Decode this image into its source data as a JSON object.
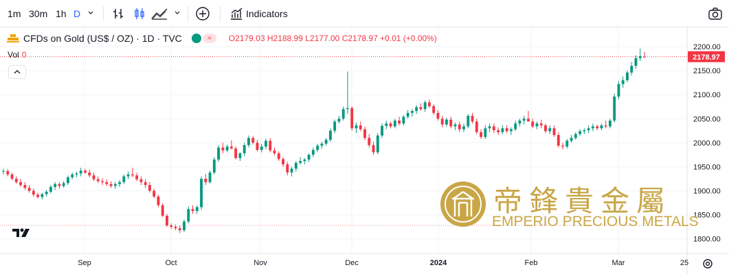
{
  "toolbar": {
    "intervals": [
      "1m",
      "30m",
      "1h",
      "D"
    ],
    "active_interval": "D",
    "indicators_label": "Indicators",
    "accent_color": "#2962ff"
  },
  "legend": {
    "symbol": "CFDs on Gold (US$ / OZ) · 1D · TVC",
    "open_label": "O",
    "open": "2179.03",
    "high_label": "H",
    "high": "2188.99",
    "low_label": "L",
    "low": "2177.00",
    "close_label": "C",
    "close": "2178.97",
    "change": "+0.01 (+0.00%)"
  },
  "volume": {
    "label": "Vol",
    "value": "0"
  },
  "price_tag": "2178.97",
  "watermark": {
    "chinese": "帝鋒貴金屬",
    "english": "EMPERIO PRECIOUS METALS"
  },
  "colors": {
    "up": "#089981",
    "down": "#f23645",
    "gold": "#c9a646"
  },
  "chart_data": {
    "type": "candlestick",
    "y_ticks": [
      "2200.00",
      "2150.00",
      "2100.00",
      "2050.00",
      "2000.00",
      "1950.00",
      "1900.00",
      "1850.00",
      "1800.00"
    ],
    "ylim": [
      1790,
      2215
    ],
    "x_ticks": [
      "Sep",
      "Oct",
      "Nov",
      "Dec",
      "2024",
      "Feb",
      "Mar",
      "25"
    ],
    "last_price": 2178.97,
    "candles": [
      [
        1940,
        1946,
        1934,
        1941
      ],
      [
        1941,
        1945,
        1930,
        1934
      ],
      [
        1934,
        1938,
        1922,
        1925
      ],
      [
        1925,
        1930,
        1915,
        1918
      ],
      [
        1918,
        1925,
        1908,
        1912
      ],
      [
        1912,
        1918,
        1902,
        1906
      ],
      [
        1906,
        1912,
        1896,
        1900
      ],
      [
        1900,
        1905,
        1888,
        1892
      ],
      [
        1892,
        1896,
        1884,
        1887
      ],
      [
        1887,
        1895,
        1882,
        1893
      ],
      [
        1893,
        1902,
        1888,
        1898
      ],
      [
        1898,
        1912,
        1894,
        1908
      ],
      [
        1908,
        1918,
        1902,
        1914
      ],
      [
        1914,
        1918,
        1904,
        1910
      ],
      [
        1910,
        1920,
        1906,
        1916
      ],
      [
        1916,
        1932,
        1912,
        1928
      ],
      [
        1928,
        1938,
        1924,
        1934
      ],
      [
        1934,
        1940,
        1928,
        1936
      ],
      [
        1936,
        1948,
        1930,
        1942
      ],
      [
        1942,
        1946,
        1935,
        1938
      ],
      [
        1938,
        1944,
        1928,
        1932
      ],
      [
        1932,
        1938,
        1920,
        1924
      ],
      [
        1924,
        1930,
        1916,
        1920
      ],
      [
        1920,
        1926,
        1912,
        1918
      ],
      [
        1918,
        1924,
        1910,
        1914
      ],
      [
        1914,
        1920,
        1906,
        1910
      ],
      [
        1910,
        1918,
        1904,
        1914
      ],
      [
        1914,
        1922,
        1908,
        1918
      ],
      [
        1918,
        1934,
        1914,
        1930
      ],
      [
        1930,
        1940,
        1924,
        1934
      ],
      [
        1934,
        1948,
        1928,
        1932
      ],
      [
        1932,
        1938,
        1920,
        1924
      ],
      [
        1924,
        1930,
        1912,
        1918
      ],
      [
        1918,
        1924,
        1906,
        1912
      ],
      [
        1912,
        1918,
        1896,
        1900
      ],
      [
        1900,
        1904,
        1884,
        1888
      ],
      [
        1888,
        1892,
        1866,
        1870
      ],
      [
        1870,
        1874,
        1845,
        1848
      ],
      [
        1848,
        1852,
        1825,
        1828
      ],
      [
        1828,
        1832,
        1820,
        1825
      ],
      [
        1825,
        1830,
        1818,
        1822
      ],
      [
        1822,
        1828,
        1812,
        1818
      ],
      [
        1818,
        1840,
        1814,
        1836
      ],
      [
        1836,
        1868,
        1832,
        1862
      ],
      [
        1862,
        1870,
        1852,
        1858
      ],
      [
        1858,
        1870,
        1852,
        1866
      ],
      [
        1866,
        1930,
        1860,
        1925
      ],
      [
        1925,
        1935,
        1912,
        1918
      ],
      [
        1918,
        1942,
        1915,
        1938
      ],
      [
        1938,
        1970,
        1934,
        1965
      ],
      [
        1965,
        1995,
        1960,
        1990
      ],
      [
        1990,
        2000,
        1978,
        1984
      ],
      [
        1984,
        1996,
        1980,
        1992
      ],
      [
        1992,
        2005,
        1986,
        1988
      ],
      [
        1988,
        1992,
        1965,
        1968
      ],
      [
        1968,
        1980,
        1962,
        1978
      ],
      [
        1978,
        2000,
        1972,
        1995
      ],
      [
        1995,
        2015,
        1990,
        2010
      ],
      [
        2010,
        2014,
        1996,
        2000
      ],
      [
        2000,
        2006,
        1982,
        1985
      ],
      [
        1985,
        1998,
        1980,
        1992
      ],
      [
        1992,
        2008,
        1986,
        2004
      ],
      [
        2004,
        2010,
        1980,
        1984
      ],
      [
        1984,
        1990,
        1974,
        1978
      ],
      [
        1978,
        1982,
        1962,
        1966
      ],
      [
        1966,
        1970,
        1950,
        1955
      ],
      [
        1955,
        1960,
        1932,
        1938
      ],
      [
        1938,
        1950,
        1930,
        1946
      ],
      [
        1946,
        1962,
        1940,
        1958
      ],
      [
        1958,
        1970,
        1954,
        1962
      ],
      [
        1962,
        1968,
        1955,
        1965
      ],
      [
        1965,
        1978,
        1960,
        1975
      ],
      [
        1975,
        1990,
        1970,
        1985
      ],
      [
        1985,
        1998,
        1980,
        1994
      ],
      [
        1994,
        2002,
        1988,
        1998
      ],
      [
        1998,
        2010,
        1994,
        2006
      ],
      [
        2006,
        2030,
        2002,
        2025
      ],
      [
        2025,
        2048,
        2020,
        2044
      ],
      [
        2044,
        2056,
        2040,
        2050
      ],
      [
        2050,
        2075,
        2046,
        2070
      ],
      [
        2070,
        2148,
        2060,
        2072
      ],
      [
        2072,
        2076,
        2025,
        2030
      ],
      [
        2030,
        2042,
        2020,
        2036
      ],
      [
        2036,
        2044,
        2024,
        2028
      ],
      [
        2028,
        2034,
        2005,
        2010
      ],
      [
        2010,
        2018,
        1990,
        1995
      ],
      [
        1995,
        2002,
        1975,
        1980
      ],
      [
        1980,
        2020,
        1976,
        2015
      ],
      [
        2015,
        2040,
        2010,
        2035
      ],
      [
        2035,
        2046,
        2028,
        2040
      ],
      [
        2040,
        2044,
        2030,
        2034
      ],
      [
        2034,
        2050,
        2030,
        2046
      ],
      [
        2046,
        2054,
        2036,
        2040
      ],
      [
        2040,
        2058,
        2036,
        2054
      ],
      [
        2054,
        2068,
        2050,
        2062
      ],
      [
        2062,
        2070,
        2054,
        2066
      ],
      [
        2066,
        2078,
        2060,
        2074
      ],
      [
        2074,
        2082,
        2066,
        2070
      ],
      [
        2070,
        2088,
        2064,
        2084
      ],
      [
        2084,
        2090,
        2072,
        2076
      ],
      [
        2076,
        2080,
        2058,
        2062
      ],
      [
        2062,
        2068,
        2046,
        2050
      ],
      [
        2050,
        2056,
        2032,
        2038
      ],
      [
        2038,
        2052,
        2034,
        2048
      ],
      [
        2048,
        2054,
        2030,
        2034
      ],
      [
        2034,
        2042,
        2026,
        2038
      ],
      [
        2038,
        2044,
        2022,
        2028
      ],
      [
        2028,
        2040,
        2022,
        2034
      ],
      [
        2034,
        2060,
        2030,
        2056
      ],
      [
        2056,
        2062,
        2040,
        2044
      ],
      [
        2044,
        2050,
        2018,
        2022
      ],
      [
        2022,
        2028,
        2008,
        2012
      ],
      [
        2012,
        2036,
        2008,
        2030
      ],
      [
        2030,
        2040,
        2022,
        2034
      ],
      [
        2034,
        2040,
        2020,
        2026
      ],
      [
        2026,
        2032,
        2016,
        2022
      ],
      [
        2022,
        2036,
        2018,
        2030
      ],
      [
        2030,
        2036,
        2020,
        2024
      ],
      [
        2024,
        2032,
        2016,
        2028
      ],
      [
        2028,
        2046,
        2024,
        2040
      ],
      [
        2040,
        2050,
        2034,
        2046
      ],
      [
        2046,
        2056,
        2038,
        2050
      ],
      [
        2050,
        2066,
        2044,
        2044
      ],
      [
        2044,
        2050,
        2030,
        2034
      ],
      [
        2034,
        2044,
        2028,
        2040
      ],
      [
        2040,
        2048,
        2030,
        2036
      ],
      [
        2036,
        2040,
        2020,
        2024
      ],
      [
        2024,
        2036,
        2018,
        2030
      ],
      [
        2030,
        2036,
        2012,
        2016
      ],
      [
        2016,
        2022,
        1990,
        1994
      ],
      [
        1994,
        2000,
        1986,
        1992
      ],
      [
        1992,
        2008,
        1988,
        2004
      ],
      [
        2004,
        2016,
        2000,
        2010
      ],
      [
        2010,
        2022,
        2006,
        2018
      ],
      [
        2018,
        2028,
        2014,
        2024
      ],
      [
        2024,
        2030,
        2018,
        2026
      ],
      [
        2026,
        2036,
        2020,
        2030
      ],
      [
        2030,
        2040,
        2024,
        2034
      ],
      [
        2034,
        2038,
        2026,
        2030
      ],
      [
        2030,
        2040,
        2026,
        2036
      ],
      [
        2036,
        2046,
        2030,
        2034
      ],
      [
        2034,
        2050,
        2030,
        2046
      ],
      [
        2046,
        2102,
        2042,
        2096
      ],
      [
        2096,
        2128,
        2090,
        2122
      ],
      [
        2122,
        2138,
        2114,
        2130
      ],
      [
        2130,
        2150,
        2126,
        2146
      ],
      [
        2146,
        2168,
        2140,
        2160
      ],
      [
        2160,
        2182,
        2154,
        2176
      ],
      [
        2176,
        2196,
        2170,
        2180
      ],
      [
        2179.03,
        2188.99,
        2177,
        2178.97
      ]
    ]
  }
}
